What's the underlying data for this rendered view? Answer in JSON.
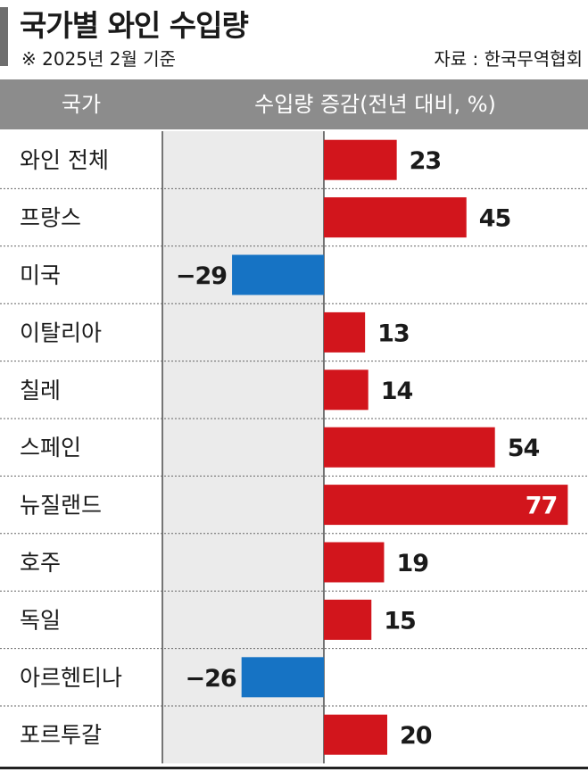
{
  "title": "국가별 와인 수입량",
  "note": "※ 2025년 2월 기준",
  "source": "자료 : 한국무역협회",
  "colors": {
    "positive": "#d2151c",
    "negative": "#1673c4",
    "header": "#8c8c8c",
    "shade": "#ebebeb"
  },
  "chart_data": {
    "type": "bar",
    "orientation": "horizontal",
    "column_headers": [
      "국가",
      "수입량 증감(전년 대비, %)"
    ],
    "categories": [
      "와인 전체",
      "프랑스",
      "미국",
      "이탈리아",
      "칠레",
      "스페인",
      "뉴질랜드",
      "호주",
      "독일",
      "아르헨티나",
      "포르투갈"
    ],
    "values": [
      23,
      45,
      -29,
      13,
      14,
      54,
      77,
      19,
      15,
      -26,
      20
    ],
    "value_labels": [
      "23",
      "45",
      "−29",
      "13",
      "14",
      "54",
      "77",
      "19",
      "15",
      "−26",
      "20"
    ],
    "xlim": [
      -50,
      82
    ]
  }
}
